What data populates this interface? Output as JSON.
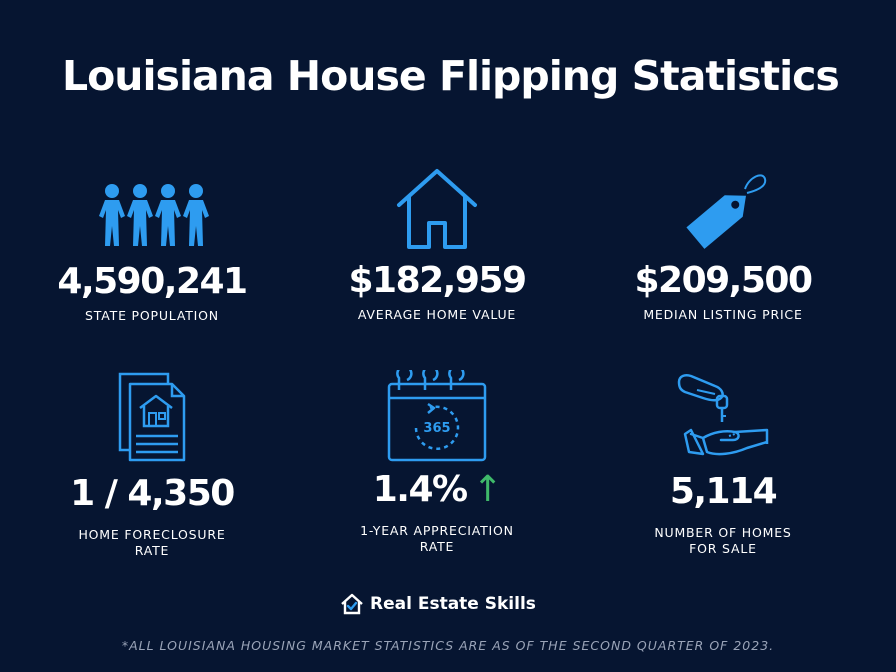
{
  "title": "Louisiana House Flipping Statistics",
  "stats": [
    {
      "icon": "people-icon",
      "value": "4,590,241",
      "label": "STATE POPULATION"
    },
    {
      "icon": "house-icon",
      "value": "$182,959",
      "label": "AVERAGE HOME VALUE"
    },
    {
      "icon": "price-tag-icon",
      "value": "$209,500",
      "label": "MEDIAN LISTING PRICE"
    },
    {
      "icon": "foreclosure-document-icon",
      "value": "1 / 4,350",
      "label_line1": "HOME FORECLOSURE",
      "label_line2": "RATE"
    },
    {
      "icon": "calendar-365-icon",
      "value": "1.4%",
      "label_line1": "1-YEAR APPRECIATION",
      "label_line2": "RATE",
      "calendar_text": "365",
      "arrow": "↑"
    },
    {
      "icon": "hand-key-icon",
      "value": "5,114",
      "label_line1": "NUMBER OF HOMES",
      "label_line2": "FOR SALE"
    }
  ],
  "brand": {
    "name": "Real Estate Skills"
  },
  "footnote": "*ALL LOUISIANA HOUSING MARKET STATISTICS ARE AS OF THE SECOND QUARTER OF 2023.",
  "colors": {
    "background": "#061531",
    "icon": "#2e9cf0",
    "arrow": "#3fb96a",
    "footnote": "#9aa4b8"
  }
}
